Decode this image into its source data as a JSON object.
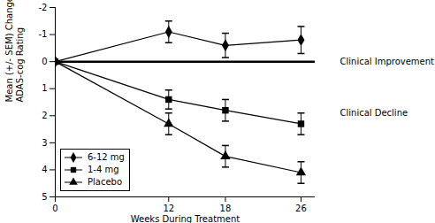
{
  "chart_data": {
    "type": "line",
    "x_label": "Weeks During Treatment",
    "y_label": "Mean (+/- SEM) Change from Baseline\nADAS-cog Rating",
    "x": [
      0,
      12,
      18,
      26
    ],
    "series": [
      {
        "name": "6-12 mg",
        "color": "#000000",
        "marker": "diamond",
        "values": [
          0,
          -1.1,
          -0.6,
          -0.8
        ],
        "errors": [
          0,
          0.4,
          0.45,
          0.5
        ]
      },
      {
        "name": "1-4 mg",
        "color": "#000000",
        "marker": "square",
        "values": [
          0,
          1.4,
          1.8,
          2.3
        ],
        "errors": [
          0,
          0.35,
          0.4,
          0.4
        ]
      },
      {
        "name": "Placebo",
        "color": "#000000",
        "marker": "triangle",
        "values": [
          0,
          2.3,
          3.5,
          4.1
        ],
        "errors": [
          0,
          0.4,
          0.4,
          0.4
        ]
      }
    ],
    "reference_lines": [
      0
    ],
    "annotations": [
      {
        "text": "Clinical Improvement",
        "y": 0
      },
      {
        "text": "Clinical Decline",
        "y": 1.9
      }
    ],
    "xlim": [
      0,
      27.5
    ],
    "xticks": [
      0,
      12,
      18,
      26
    ],
    "ylim": [
      5,
      -2
    ],
    "yticks": [
      -2,
      -1,
      0,
      1,
      2,
      3,
      4,
      5
    ],
    "grid": false,
    "legend": "lower left"
  }
}
